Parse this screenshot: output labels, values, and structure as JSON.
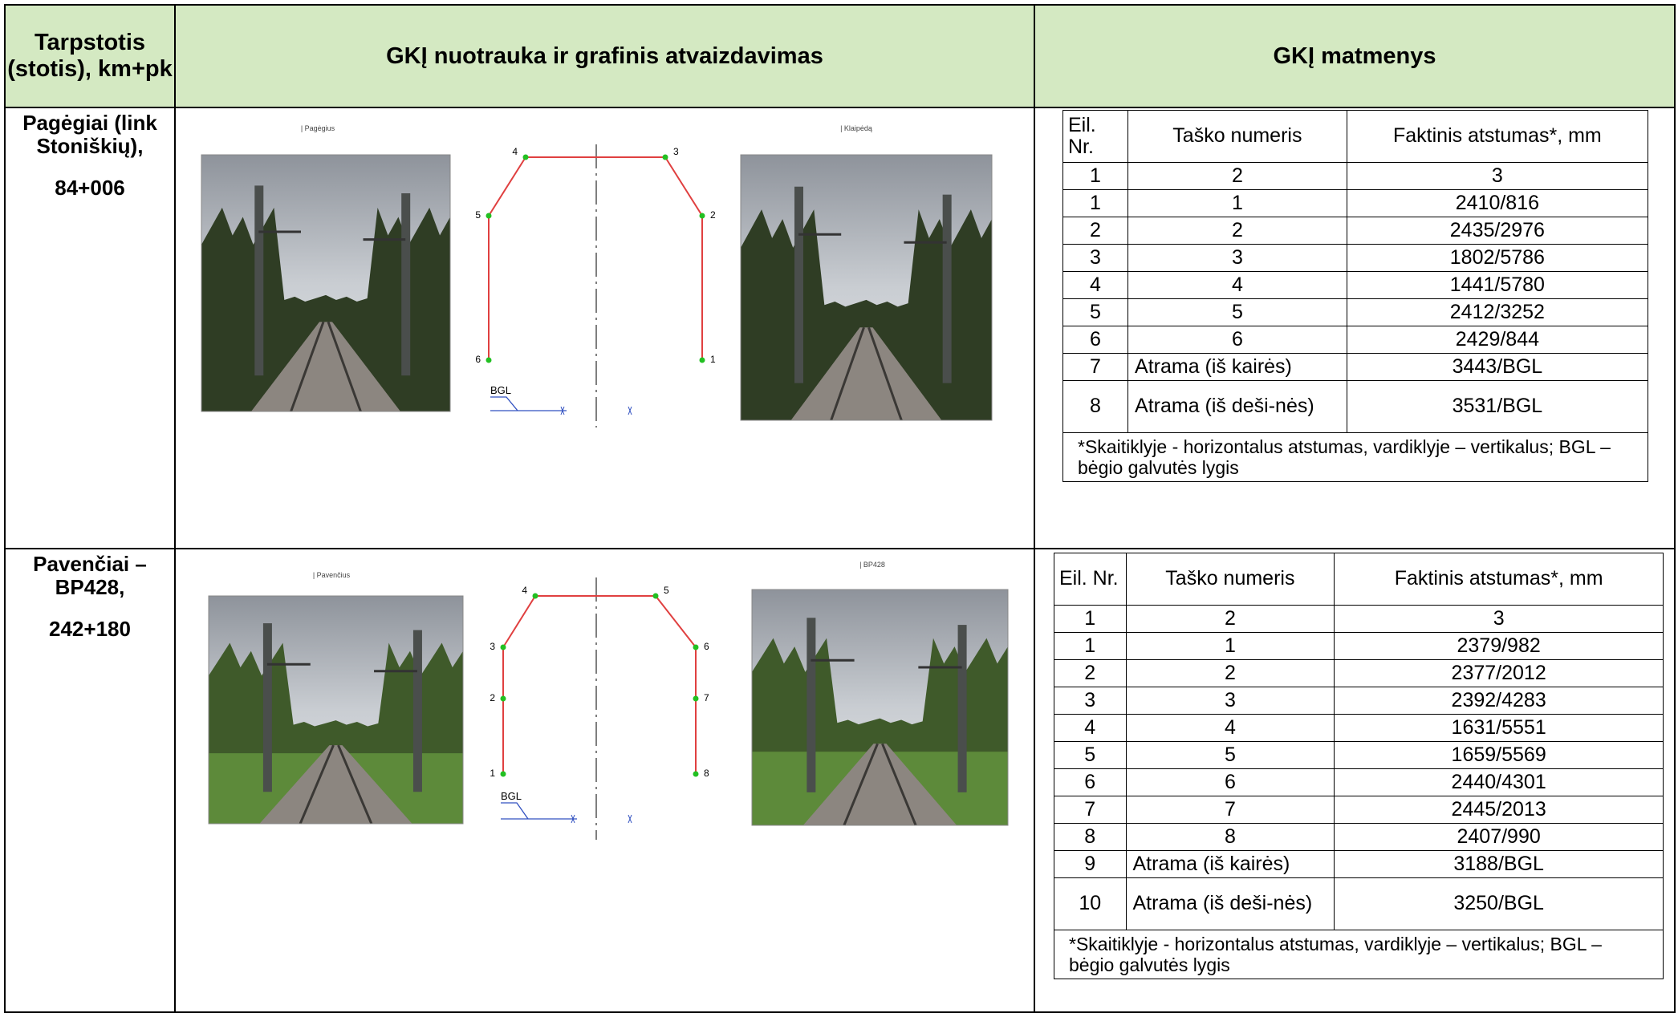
{
  "header": {
    "col1": "Tarpstotis (stotis), km+pk",
    "col2": "GKĮ nuotrauka ir grafinis atvaizdavimas",
    "col3": "GKĮ matmenys"
  },
  "rows": [
    {
      "station": "Pagėgiai (link Stoniškių),",
      "km": "84+006",
      "photo_captions": [
        "| Pagėgius",
        "| Klaipėdą"
      ],
      "diagram": {
        "points": [
          "4",
          "3",
          "5",
          "2",
          "6",
          "1"
        ],
        "bgl": "BGL"
      },
      "table": {
        "header": [
          "Eil. Nr.",
          "Taško numeris",
          "Faktinis atstumas*, mm"
        ],
        "rows": [
          [
            "1",
            "2",
            "3"
          ],
          [
            "1",
            "1",
            "2410/816"
          ],
          [
            "2",
            "2",
            "2435/2976"
          ],
          [
            "3",
            "3",
            "1802/5786"
          ],
          [
            "4",
            "4",
            "1441/5780"
          ],
          [
            "5",
            "5",
            "2412/3252"
          ],
          [
            "6",
            "6",
            "2429/844"
          ],
          [
            "7",
            "Atrama (iš kairės)",
            "3443/BGL"
          ],
          [
            "8",
            "Atrama (iš deši-nės)",
            "3531/BGL"
          ]
        ],
        "note": "*Skaitiklyje - horizontalus atstumas, vardiklyje – vertikalus; BGL – bėgio galvutės lygis"
      }
    },
    {
      "station": "Pavenčiai – BP428,",
      "km": "242+180",
      "photo_captions": [
        "| Pavenčius",
        "| BP428"
      ],
      "diagram": {
        "points": [
          "4",
          "5",
          "3",
          "6",
          "2",
          "7",
          "1",
          "8"
        ],
        "bgl": "BGL"
      },
      "table": {
        "header": [
          "Eil. Nr.",
          "Taško numeris",
          "Faktinis atstumas*, mm"
        ],
        "rows": [
          [
            "1",
            "2",
            "3"
          ],
          [
            "1",
            "1",
            "2379/982"
          ],
          [
            "2",
            "2",
            "2377/2012"
          ],
          [
            "3",
            "3",
            "2392/4283"
          ],
          [
            "4",
            "4",
            "1631/5551"
          ],
          [
            "5",
            "5",
            "1659/5569"
          ],
          [
            "6",
            "6",
            "2440/4301"
          ],
          [
            "7",
            "7",
            "2445/2013"
          ],
          [
            "8",
            "8",
            "2407/990"
          ],
          [
            "9",
            "Atrama (iš kairės)",
            "3188/BGL"
          ],
          [
            "10",
            "Atrama (iš deši-nės)",
            "3250/BGL"
          ]
        ],
        "note": "*Skaitiklyje - horizontalus atstumas, vardiklyje – vertikalus; BGL – bėgio galvutės lygis"
      }
    }
  ]
}
